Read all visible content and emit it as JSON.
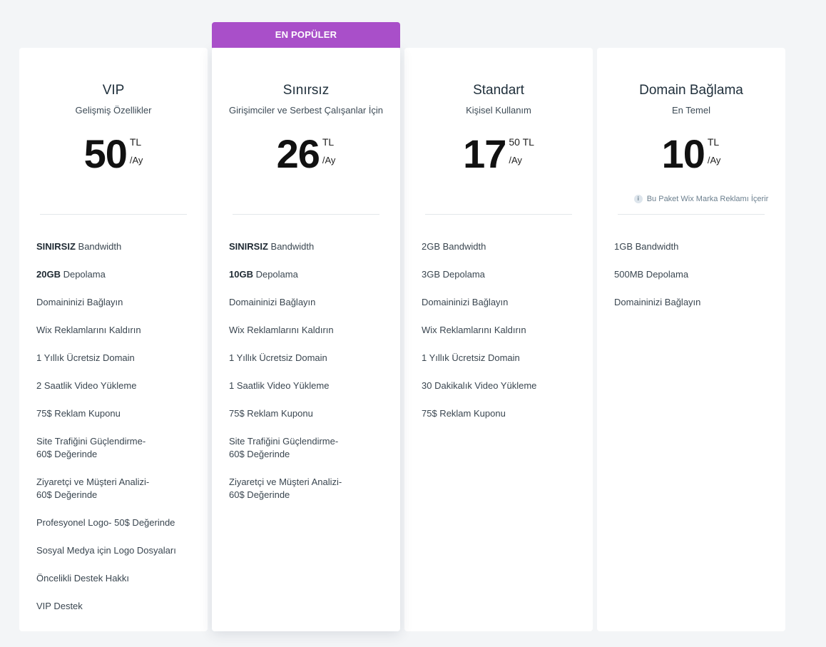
{
  "plans": [
    {
      "title": "VIP",
      "subtitle": "Gelişmiş Özellikler",
      "amount": "50",
      "unit": "TL",
      "per": "/Ay",
      "features": [
        {
          "bold": "SINIRSIZ",
          "text": " Bandwidth"
        },
        {
          "bold": "20GB",
          "text": " Depolama"
        },
        {
          "bold": "",
          "text": "Domaininizi Bağlayın"
        },
        {
          "bold": "",
          "text": "Wix Reklamlarını Kaldırın"
        },
        {
          "bold": "",
          "text": "1 Yıllık Ücretsiz Domain"
        },
        {
          "bold": "",
          "text": "2 Saatlik Video Yükleme"
        },
        {
          "bold": "",
          "text": "75$ Reklam Kuponu"
        },
        {
          "bold": "",
          "text": "Site Trafiğini Güçlendirme-\n60$ Değerinde"
        },
        {
          "bold": "",
          "text": "Ziyaretçi ve Müşteri Analizi-\n60$ Değerinde"
        },
        {
          "bold": "",
          "text": "Profesyonel Logo- 50$ Değerinde"
        },
        {
          "bold": "",
          "text": "Sosyal Medya için Logo Dosyaları"
        },
        {
          "bold": "",
          "text": "Öncelikli Destek Hakkı"
        },
        {
          "bold": "",
          "text": "VIP Destek"
        }
      ]
    },
    {
      "badge": "EN POPÜLER",
      "title": "Sınırsız",
      "subtitle": "Girişimciler ve Serbest Çalışanlar İçin",
      "amount": "26",
      "unit": "TL",
      "per": "/Ay",
      "features": [
        {
          "bold": "SINIRSIZ",
          "text": " Bandwidth"
        },
        {
          "bold": "10GB",
          "text": " Depolama"
        },
        {
          "bold": "",
          "text": "Domaininizi Bağlayın"
        },
        {
          "bold": "",
          "text": "Wix Reklamlarını Kaldırın"
        },
        {
          "bold": "",
          "text": "1 Yıllık Ücretsiz Domain"
        },
        {
          "bold": "",
          "text": "1 Saatlik Video Yükleme"
        },
        {
          "bold": "",
          "text": "75$ Reklam Kuponu"
        },
        {
          "bold": "",
          "text": "Site Trafiğini Güçlendirme-\n60$ Değerinde"
        },
        {
          "bold": "",
          "text": "Ziyaretçi ve Müşteri Analizi-\n60$ Değerinde"
        }
      ]
    },
    {
      "title": "Standart",
      "subtitle": "Kişisel Kullanım",
      "amount": "17",
      "unit": "50 TL",
      "per": "/Ay",
      "features": [
        {
          "bold": "",
          "text": "2GB Bandwidth"
        },
        {
          "bold": "",
          "text": "3GB Depolama"
        },
        {
          "bold": "",
          "text": "Domaininizi Bağlayın"
        },
        {
          "bold": "",
          "text": "Wix Reklamlarını Kaldırın"
        },
        {
          "bold": "",
          "text": "1 Yıllık Ücretsiz Domain"
        },
        {
          "bold": "",
          "text": "30 Dakikalık Video Yükleme"
        },
        {
          "bold": "",
          "text": "75$ Reklam Kuponu"
        }
      ]
    },
    {
      "title": "Domain Bağlama",
      "subtitle": "En Temel",
      "amount": "10",
      "unit": "TL",
      "per": "/Ay",
      "note": "Bu Paket Wix Marka Reklamı İçerir",
      "features": [
        {
          "bold": "",
          "text": "1GB Bandwidth"
        },
        {
          "bold": "",
          "text": "500MB Depolama"
        },
        {
          "bold": "",
          "text": "Domaininizi Bağlayın"
        }
      ]
    }
  ],
  "colors": {
    "badge": "#a94fc9",
    "background": "#f3f5f7"
  },
  "icons": {
    "note": "info-icon"
  }
}
